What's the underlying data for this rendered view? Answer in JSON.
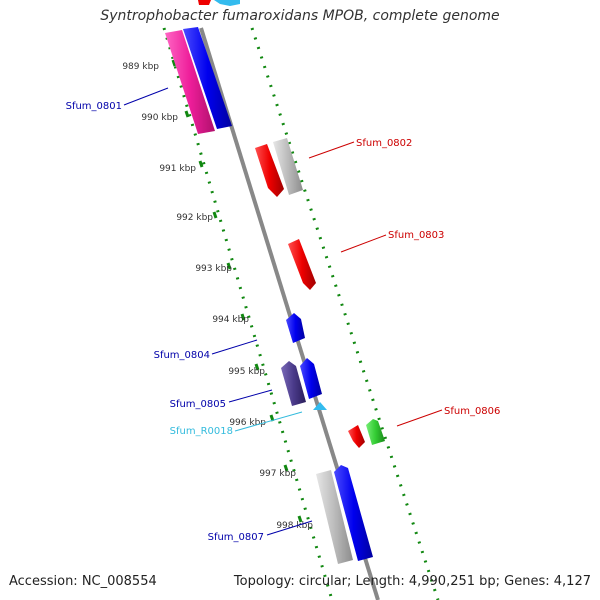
{
  "header": {
    "title": "Syntrophobacter fumaroxidans MPOB, complete genome"
  },
  "footer": {
    "accession": "Accession: NC_008554",
    "summary": "Topology: circular; Length: 4,990,251 bp; Genes: 4,127"
  },
  "ticks": [
    "989 kbp",
    "990 kbp",
    "991 kbp",
    "992 kbp",
    "993 kbp",
    "994 kbp",
    "995 kbp",
    "996 kbp",
    "997 kbp",
    "998 kbp"
  ],
  "genes": [
    {
      "label": "Sfum_0801",
      "color": "#0000aa"
    },
    {
      "label": "Sfum_0802",
      "color": "#cc0000"
    },
    {
      "label": "Sfum_0803",
      "color": "#cc0000"
    },
    {
      "label": "Sfum_0804",
      "color": "#0000aa"
    },
    {
      "label": "Sfum_0805",
      "color": "#0000aa"
    },
    {
      "label": "Sfum_R0018",
      "color": "#33bbdd"
    },
    {
      "label": "Sfum_0806",
      "color": "#cc0000"
    },
    {
      "label": "Sfum_0807",
      "color": "#0000aa"
    }
  ],
  "colors": {
    "backbone": "#888888",
    "ruler": "#118811",
    "magenta": "#ee1e9a",
    "blue": "#0000ee",
    "red": "#ee0000",
    "gray": "#bbbbbb",
    "dark_blue": "#4a3a8a",
    "cyan": "#33bbee",
    "green": "#33cc33"
  }
}
